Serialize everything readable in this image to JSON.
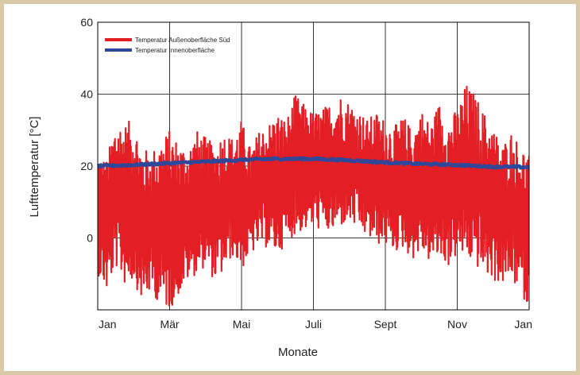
{
  "chart_data": {
    "type": "line",
    "title": "",
    "xlabel": "Monate",
    "ylabel": "Lufttemperatur [°C]",
    "ylim": [
      -20,
      60
    ],
    "xlim": [
      0,
      12
    ],
    "yticks": [
      0,
      20,
      40,
      60
    ],
    "x_ticks": [
      {
        "month": 0,
        "label": "Jan"
      },
      {
        "month": 2,
        "label": "Mär"
      },
      {
        "month": 4,
        "label": "Mai"
      },
      {
        "month": 6,
        "label": "Juli"
      },
      {
        "month": 8,
        "label": "Sept"
      },
      {
        "month": 10,
        "label": "Nov"
      },
      {
        "month": 12,
        "label": "Jan"
      }
    ],
    "grid": true,
    "legend_position": "top-left",
    "series": [
      {
        "name": "Temperatur Außenoberfläche Süd",
        "color": "#e31e24",
        "x_months": [
          0,
          0.25,
          0.5,
          0.75,
          1,
          1.25,
          1.5,
          1.75,
          2,
          2.25,
          2.5,
          2.75,
          3,
          3.25,
          3.5,
          3.75,
          4,
          4.25,
          4.5,
          4.75,
          5,
          5.25,
          5.5,
          5.75,
          6,
          6.25,
          6.5,
          6.75,
          7,
          7.25,
          7.5,
          7.75,
          8,
          8.25,
          8.5,
          8.75,
          9,
          9.25,
          9.5,
          9.75,
          10,
          10.25,
          10.5,
          10.75,
          11,
          11.25,
          11.5,
          11.75,
          12
        ],
        "daily_max": [
          24,
          22,
          33,
          32,
          33,
          25,
          24,
          28,
          30,
          27,
          25,
          30,
          28,
          26,
          30,
          28,
          33,
          25,
          30,
          32,
          35,
          33,
          40,
          37,
          35,
          36,
          38,
          40,
          38,
          36,
          33,
          35,
          33,
          31,
          34,
          30,
          36,
          32,
          38,
          33,
          36,
          43,
          40,
          35,
          31,
          26,
          30,
          26,
          24
        ],
        "daily_min": [
          -10,
          -15,
          -8,
          -13,
          -12,
          -18,
          -15,
          -19,
          -20,
          -16,
          -12,
          -10,
          -8,
          -12,
          -10,
          -5,
          -9,
          -5,
          -2,
          -3,
          -5,
          -1,
          1,
          2,
          3,
          2,
          1,
          3,
          4,
          2,
          0,
          -2,
          -2,
          -4,
          -3,
          -6,
          -4,
          -7,
          -6,
          -8,
          -5,
          -6,
          -8,
          -10,
          -12,
          -13,
          -12,
          -15,
          -20
        ]
      },
      {
        "name": "Temperatur Innenoberfläche",
        "color": "#2e4799",
        "x_months": [
          0,
          1,
          2,
          3,
          4,
          5,
          6,
          7,
          8,
          9,
          10,
          11,
          12
        ],
        "values": [
          20,
          20.3,
          20.8,
          21.2,
          21.7,
          22,
          22,
          21.6,
          21,
          20.6,
          20.3,
          19.8,
          19.7
        ]
      }
    ]
  }
}
